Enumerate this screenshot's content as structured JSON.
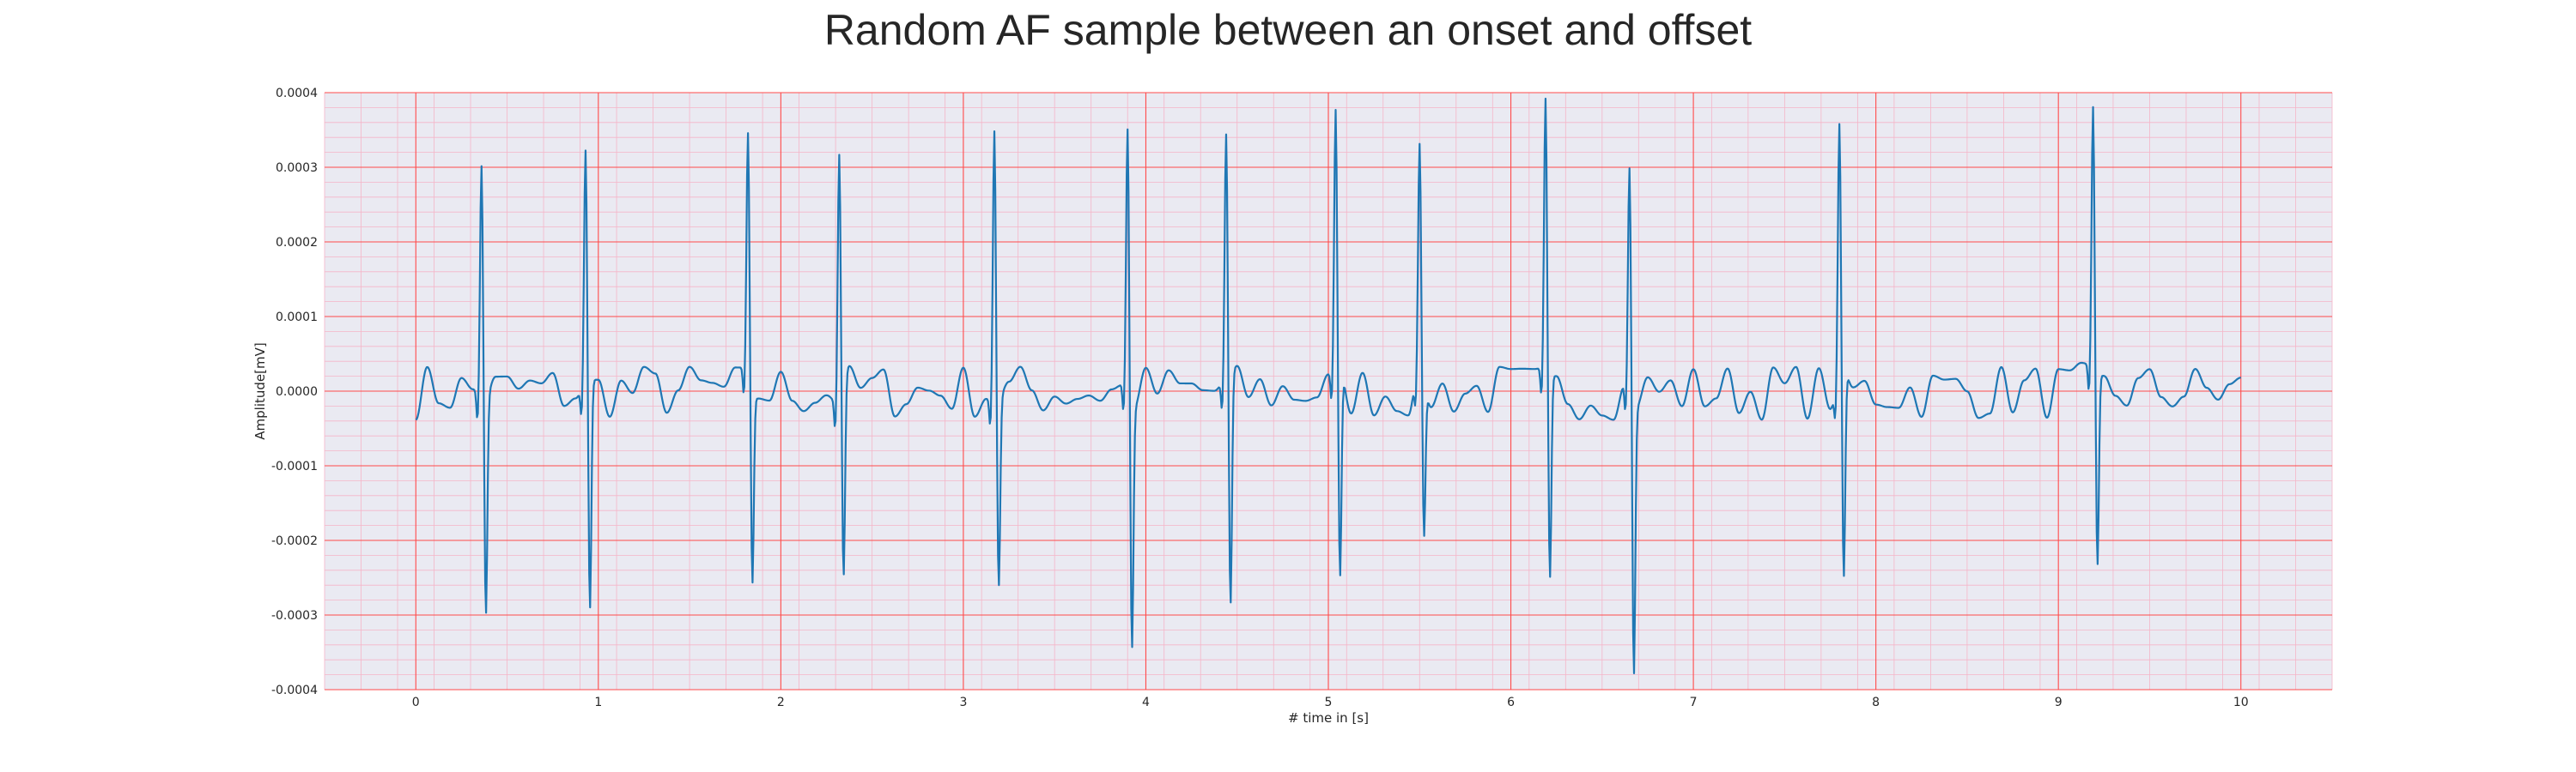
{
  "chart_data": {
    "type": "line",
    "title": "Random AF sample between an onset and offset",
    "xlabel": "# time in [s]",
    "ylabel": "Amplitude[mV]",
    "xlim": [
      -0.5,
      10.5
    ],
    "ylim": [
      -0.0004,
      0.0004
    ],
    "x_ticks": [
      0,
      1,
      2,
      3,
      4,
      5,
      6,
      7,
      8,
      9,
      10
    ],
    "x_tick_labels": [
      "0",
      "1",
      "2",
      "3",
      "4",
      "5",
      "6",
      "7",
      "8",
      "9",
      "10"
    ],
    "y_ticks": [
      -0.0004,
      -0.0003,
      -0.0002,
      -0.0001,
      0.0,
      0.0001,
      0.0002,
      0.0003,
      0.0004
    ],
    "y_tick_labels": [
      "-0.0004",
      "-0.0003",
      "-0.0002",
      "-0.0001",
      "0.0000",
      "0.0001",
      "0.0002",
      "0.0003",
      "0.0004"
    ],
    "grid": "major and minor",
    "colors": {
      "line": "#1f77b4",
      "plot_background": "#eaeaf2",
      "major_grid": "#ff4a4a",
      "minor_grid": "#f5b5c8",
      "text": "#262626"
    },
    "series": [
      {
        "beats": [
          {
            "t": 0.36,
            "peak": 0.000315,
            "trough": -0.00029
          },
          {
            "t": 0.93,
            "peak": 0.00031,
            "trough": -0.00031
          },
          {
            "t": 1.82,
            "peak": 0.000318,
            "trough": -0.00027
          },
          {
            "t": 2.32,
            "peak": 0.000333,
            "trough": -0.00026
          },
          {
            "t": 3.17,
            "peak": 0.000362,
            "trough": -0.000253
          },
          {
            "t": 3.9,
            "peak": 0.000355,
            "trough": -0.00033
          },
          {
            "t": 4.44,
            "peak": 0.000332,
            "trough": -0.00031
          },
          {
            "t": 5.04,
            "peak": 0.000352,
            "trough": -0.00028
          },
          {
            "t": 5.5,
            "peak": 0.000295,
            "trough": -0.000215
          },
          {
            "t": 6.19,
            "peak": 0.000363,
            "trough": -0.00028
          },
          {
            "t": 6.65,
            "peak": 0.000303,
            "trough": -0.000365
          },
          {
            "t": 7.8,
            "peak": 0.00033,
            "trough": -0.000285
          },
          {
            "t": 9.19,
            "peak": 0.000348,
            "trough": -0.000265
          }
        ],
        "baseline_max": 7e-05,
        "x_range": [
          0,
          10
        ]
      }
    ]
  }
}
